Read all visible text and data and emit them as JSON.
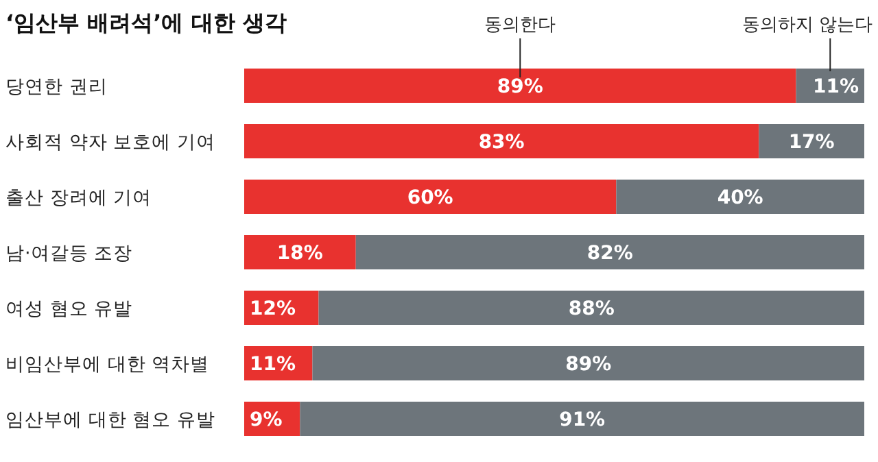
{
  "chart_data": {
    "type": "bar",
    "orientation": "horizontal",
    "stacked": true,
    "title": "‘임산부 배려석’에 대한 생각",
    "categories": [
      "당연한 권리",
      "사회적 약자 보호에 기여",
      "출산 장려에 기여",
      "남·여갈등 조장",
      "여성 혐오 유발",
      "비임산부에 대한 역차별",
      "임산부에 대한 혐오 유발"
    ],
    "series": [
      {
        "name": "동의한다",
        "color": "#e8322f",
        "values": [
          89,
          83,
          60,
          18,
          12,
          11,
          9
        ],
        "value_labels": [
          "89%",
          "83%",
          "60%",
          "18%",
          "12%",
          "11%",
          "9%"
        ]
      },
      {
        "name": "동의하지 않는다",
        "color": "#6d757b",
        "values": [
          11,
          17,
          40,
          82,
          88,
          89,
          91
        ],
        "value_labels": [
          "11%",
          "17%",
          "40%",
          "82%",
          "88%",
          "89%",
          "91%"
        ]
      }
    ],
    "xlim": [
      0,
      100
    ],
    "legend": "top"
  }
}
